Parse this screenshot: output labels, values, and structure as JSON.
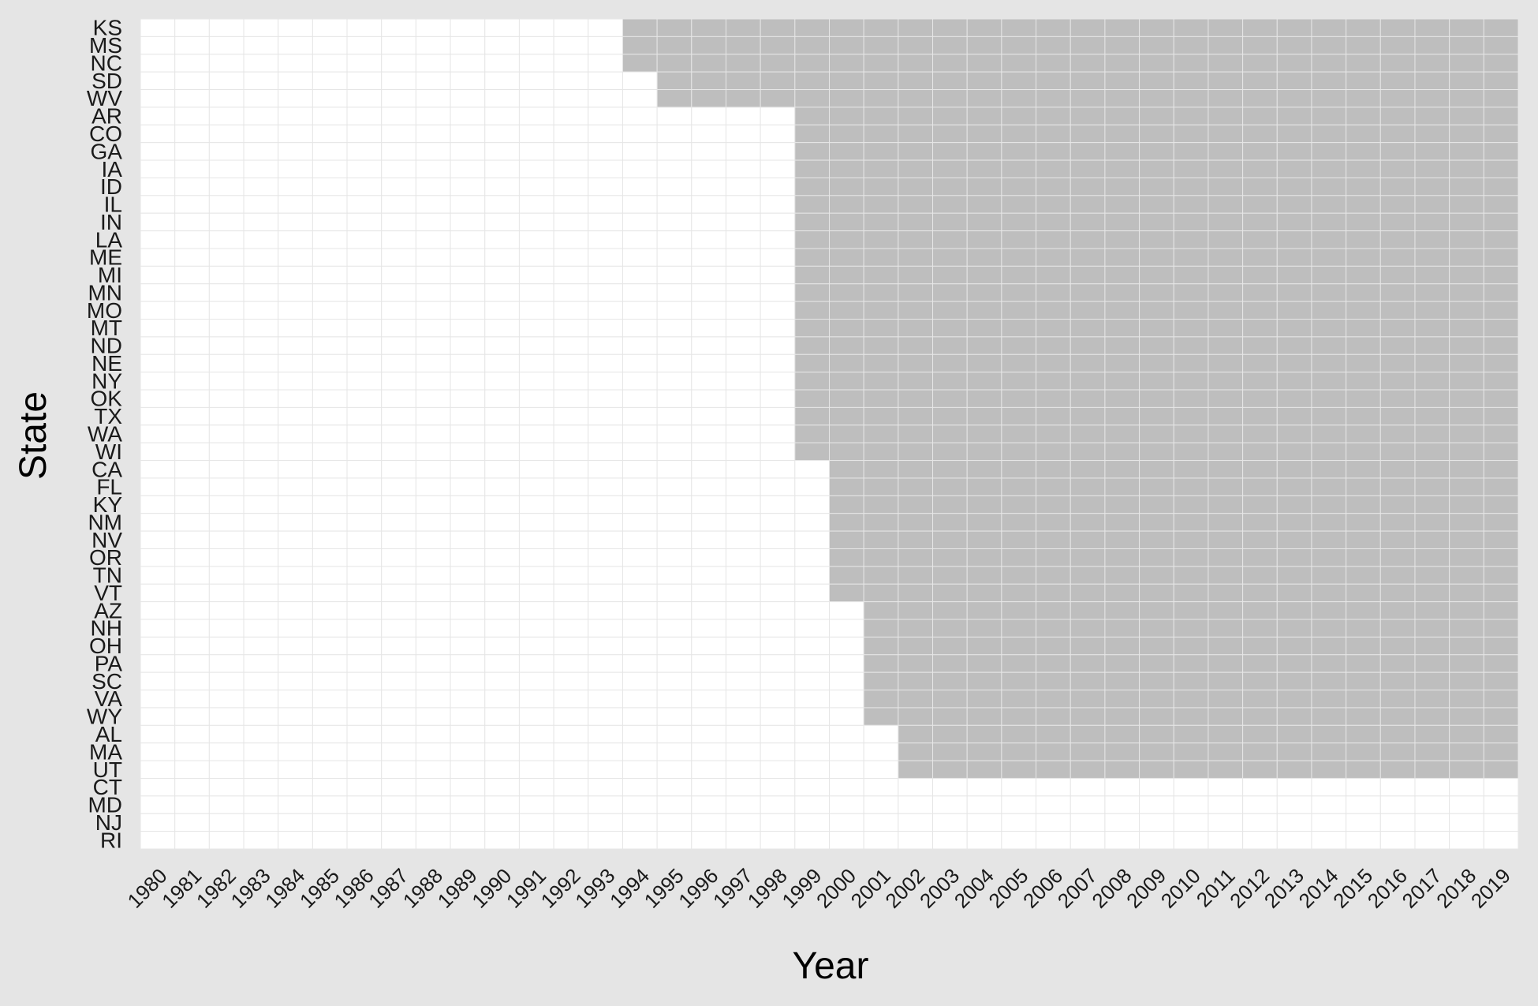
{
  "chart_data": {
    "type": "heatmap",
    "title": "",
    "xlabel": "Year",
    "ylabel": "State",
    "x": [
      1980,
      1981,
      1982,
      1983,
      1984,
      1985,
      1986,
      1987,
      1988,
      1989,
      1990,
      1991,
      1992,
      1993,
      1994,
      1995,
      1996,
      1997,
      1998,
      1999,
      2000,
      2001,
      2002,
      2003,
      2004,
      2005,
      2006,
      2007,
      2008,
      2009,
      2010,
      2011,
      2012,
      2013,
      2014,
      2015,
      2016,
      2017,
      2018,
      2019
    ],
    "x_tick_labels": [
      "1980",
      "1981",
      "1982",
      "1983",
      "1984",
      "1985",
      "1986",
      "1987",
      "1988",
      "1989",
      "1990",
      "1991",
      "1992",
      "1993",
      "1994",
      "1995",
      "1996",
      "1997",
      "1998",
      "1999",
      "2000",
      "2001",
      "2002",
      "2003",
      "2004",
      "2005",
      "2006",
      "2007",
      "2008",
      "2009",
      "2010",
      "2011",
      "2012",
      "2013",
      "2014",
      "2015",
      "2016",
      "2017",
      "2018",
      "2019"
    ],
    "states": [
      "KS",
      "MS",
      "NC",
      "SD",
      "WV",
      "AR",
      "CO",
      "GA",
      "IA",
      "ID",
      "IL",
      "IN",
      "LA",
      "ME",
      "MI",
      "MN",
      "MO",
      "MT",
      "ND",
      "NE",
      "NY",
      "OK",
      "TX",
      "WA",
      "WI",
      "CA",
      "FL",
      "KY",
      "NM",
      "NV",
      "OR",
      "TN",
      "VT",
      "AZ",
      "NH",
      "OH",
      "PA",
      "SC",
      "VA",
      "WY",
      "AL",
      "MA",
      "UT",
      "CT",
      "MD",
      "NJ",
      "RI"
    ],
    "treated_from_year": [
      1994,
      1994,
      1994,
      1995,
      1995,
      1999,
      1999,
      1999,
      1999,
      1999,
      1999,
      1999,
      1999,
      1999,
      1999,
      1999,
      1999,
      1999,
      1999,
      1999,
      1999,
      1999,
      1999,
      1999,
      1999,
      2000,
      2000,
      2000,
      2000,
      2000,
      2000,
      2000,
      2000,
      2001,
      2001,
      2001,
      2001,
      2001,
      2001,
      2001,
      2002,
      2002,
      2002,
      null,
      null,
      null,
      null
    ],
    "colors": {
      "background": "#e5e5e5",
      "panel": "#ffffff",
      "treated": "#bebebe",
      "untreated": "#ffffff",
      "grid": "#e6e6e6"
    },
    "grid": true,
    "legend": "none"
  }
}
